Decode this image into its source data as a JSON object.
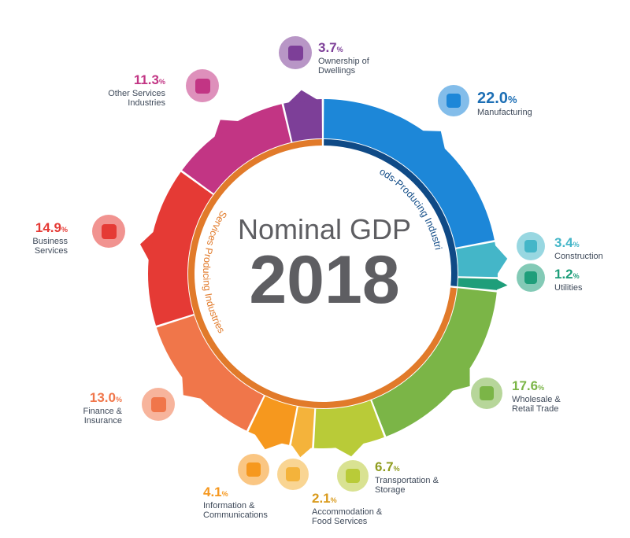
{
  "chart_data": {
    "type": "pie",
    "title_line1": "Nominal GDP",
    "title_line2": "2018",
    "groups": [
      {
        "name": "Goods-Producing Industries"
      },
      {
        "name": "Services Producing Industries"
      }
    ],
    "segments": [
      {
        "name": "Manufacturing",
        "value": 22.0,
        "pct_text": "22.0",
        "color": "#1d87d8",
        "group": 0,
        "icon": "factory-icon"
      },
      {
        "name": "Construction",
        "value": 3.4,
        "pct_text": "3.4",
        "color": "#44b6c8",
        "group": 0,
        "icon": "crane-icon"
      },
      {
        "name": "Utilities",
        "value": 1.2,
        "pct_text": "1.2",
        "color": "#1e9e7a",
        "group": 0,
        "icon": "lightbulb-icon"
      },
      {
        "name": "Wholesale & Retail Trade",
        "value": 17.6,
        "pct_text": "17.6",
        "color": "#7bb547",
        "group": 1,
        "icon": "box-icon"
      },
      {
        "name": "Transportation & Storage",
        "value": 6.7,
        "pct_text": "6.7",
        "color": "#b9cb38",
        "group": 1,
        "icon": "truck-icon"
      },
      {
        "name": "Accommodation & Food Services",
        "value": 2.1,
        "pct_text": "2.1",
        "color": "#f4b33b",
        "group": 1,
        "icon": "store-icon"
      },
      {
        "name": "Information & Communications",
        "value": 4.1,
        "pct_text": "4.1",
        "color": "#f6981e",
        "group": 1,
        "icon": "smartphone-icon"
      },
      {
        "name": "Finance & Insurance",
        "value": 13.0,
        "pct_text": "13.0",
        "color": "#f0764a",
        "group": 1,
        "icon": "umbrella-icon"
      },
      {
        "name": "Business Services",
        "value": 14.9,
        "pct_text": "14.9",
        "color": "#e53a35",
        "group": 1,
        "icon": "businessperson-icon"
      },
      {
        "name": "Other Services Industries",
        "value": 11.3,
        "pct_text": "11.3",
        "color": "#c23584",
        "group": 1,
        "icon": "sun-icon"
      },
      {
        "name": "Ownership of Dwellings",
        "value": 3.7,
        "pct_text": "3.7",
        "color": "#7d3f98",
        "group": 1,
        "icon": "building-icon"
      }
    ],
    "unit": "%"
  },
  "labels": [
    {
      "pct": "22.0",
      "unit": "%",
      "lines": [
        "Manufacturing"
      ]
    },
    {
      "pct": "3.4",
      "unit": "%",
      "lines": [
        "Construction"
      ]
    },
    {
      "pct": "1.2",
      "unit": "%",
      "lines": [
        "Utilities"
      ]
    },
    {
      "pct": "17.6",
      "unit": "%",
      "lines": [
        "Wholesale &",
        "Retail Trade"
      ]
    },
    {
      "pct": "6.7",
      "unit": "%",
      "lines": [
        "Transportation &",
        "Storage"
      ]
    },
    {
      "pct": "2.1",
      "unit": "%",
      "lines": [
        "Accommodation &",
        "Food Services"
      ]
    },
    {
      "pct": "4.1",
      "unit": "%",
      "lines": [
        "Information &",
        "Communications"
      ]
    },
    {
      "pct": "13.0",
      "unit": "%",
      "lines": [
        "Finance &",
        "Insurance"
      ]
    },
    {
      "pct": "14.9",
      "unit": "%",
      "lines": [
        "Business",
        "Services"
      ]
    },
    {
      "pct": "11.3",
      "unit": "%",
      "lines": [
        "Other Services",
        "Industries"
      ]
    },
    {
      "pct": "3.7",
      "unit": "%",
      "lines": [
        "Ownership of",
        "Dwellings"
      ]
    }
  ]
}
